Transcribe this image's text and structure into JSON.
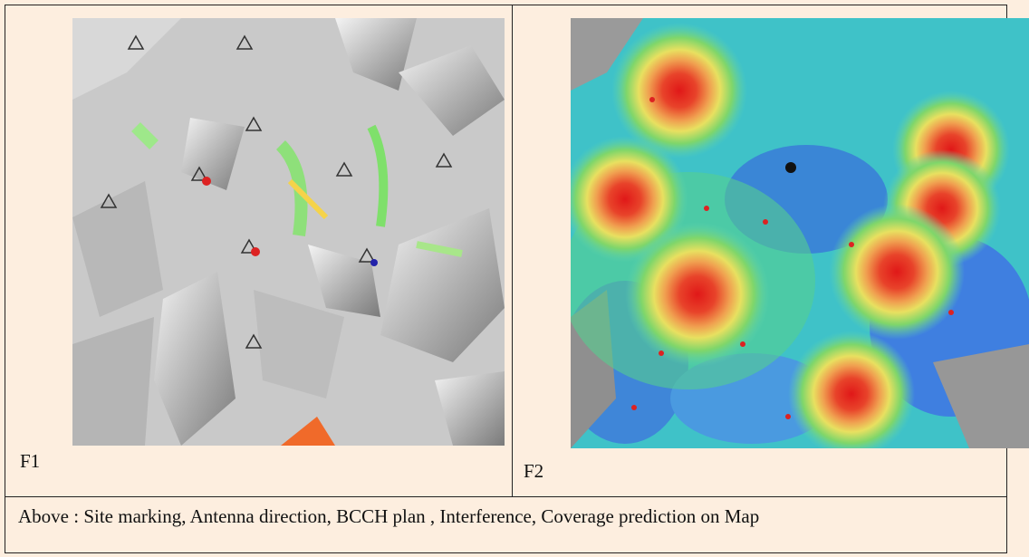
{
  "figures": [
    {
      "label": "F1"
    },
    {
      "label": "F2"
    }
  ],
  "caption": "Above : Site marking, Antenna direction, BCCH plan , Interference, Coverage prediction on Map"
}
